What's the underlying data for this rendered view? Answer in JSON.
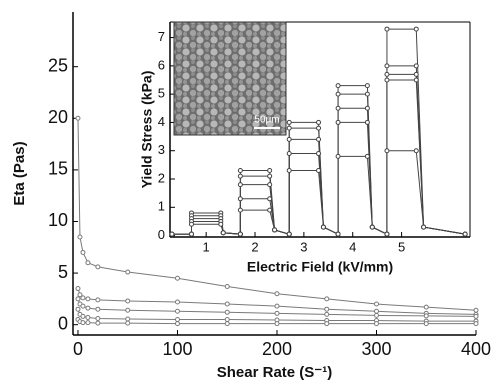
{
  "chart_data": [
    {
      "type": "line",
      "x_label": "Shear Rate (S⁻¹)",
      "y_label": "Eta (Pas)",
      "x": [
        0,
        2,
        5,
        10,
        20,
        50,
        100,
        150,
        200,
        250,
        300,
        350,
        400
      ],
      "series": [
        {
          "color": "#7a7a7a",
          "values": [
            20,
            8.5,
            7,
            6,
            5.6,
            5.1,
            4.5,
            3.7,
            3.0,
            2.5,
            2.0,
            1.7,
            1.4
          ]
        },
        {
          "color": "#7a7a7a",
          "values": [
            3.5,
            2.9,
            2.6,
            2.5,
            2.4,
            2.3,
            2.2,
            2.0,
            1.8,
            1.5,
            1.3,
            1.1,
            1.0
          ]
        },
        {
          "color": "#7a7a7a",
          "values": [
            2.5,
            2.0,
            1.8,
            1.6,
            1.5,
            1.4,
            1.3,
            1.2,
            1.1,
            1.0,
            0.9,
            0.85,
            0.8
          ]
        },
        {
          "color": "#7a7a7a",
          "values": [
            1.5,
            1.0,
            0.8,
            0.7,
            0.6,
            0.55,
            0.5,
            0.5,
            0.45,
            0.4,
            0.4,
            0.35,
            0.35
          ]
        },
        {
          "color": "#7a7a7a",
          "values": [
            0.5,
            0.3,
            0.2,
            0.2,
            0.15,
            0.15,
            0.1,
            0.1,
            0.1,
            0.1,
            0.1,
            0.1,
            0.1
          ]
        }
      ],
      "xlim": [
        -5,
        400
      ],
      "xticks": [
        0,
        100,
        200,
        300,
        400
      ],
      "ylim": [
        -1,
        30.3
      ],
      "yticks": [
        0,
        5,
        10,
        15,
        20,
        25
      ],
      "markers": true
    },
    {
      "type": "line",
      "x_label": "Electric Field (kV/mm)",
      "y_label": "Yield Stress (kPa)",
      "annotations": [
        "50μm"
      ],
      "x": [
        0.3,
        0.7,
        0.7,
        1.3,
        1.35,
        1.7,
        1.7,
        2.3,
        2.4,
        2.7,
        2.7,
        3.3,
        3.4,
        3.7,
        3.7,
        4.3,
        4.4,
        4.7,
        4.7,
        5.3,
        5.45,
        6.3
      ],
      "series": [
        {
          "color": "#444444",
          "values": [
            0.05,
            0.05,
            0.8,
            0.8,
            0.1,
            0.05,
            2.3,
            2.3,
            0.2,
            0.05,
            4.0,
            4.0,
            0.3,
            0.05,
            5.3,
            5.3,
            0.3,
            0.05,
            7.3,
            7.3,
            0.3,
            0.05
          ]
        },
        {
          "color": "#444444",
          "values": [
            0.05,
            0.05,
            0.7,
            0.7,
            0.1,
            0.05,
            2.1,
            2.1,
            0.2,
            0.05,
            3.8,
            3.8,
            0.3,
            0.05,
            5.0,
            5.0,
            0.3,
            0.05,
            6.0,
            6.0,
            0.3,
            0.05
          ]
        },
        {
          "color": "#444444",
          "values": [
            0.05,
            0.05,
            0.6,
            0.6,
            0.1,
            0.05,
            1.8,
            1.8,
            0.2,
            0.05,
            3.4,
            3.4,
            0.3,
            0.05,
            4.5,
            4.5,
            0.3,
            0.05,
            5.7,
            5.7,
            0.3,
            0.05
          ]
        },
        {
          "color": "#444444",
          "values": [
            0.05,
            0.05,
            0.5,
            0.5,
            0.1,
            0.05,
            1.3,
            1.3,
            0.2,
            0.05,
            2.9,
            2.9,
            0.3,
            0.05,
            4.0,
            4.0,
            0.3,
            0.05,
            5.5,
            5.5,
            0.3,
            0.05
          ]
        },
        {
          "color": "#444444",
          "values": [
            0.05,
            0.05,
            0.4,
            0.4,
            0.1,
            0.05,
            0.9,
            0.9,
            0.2,
            0.05,
            2.3,
            2.3,
            0.3,
            0.05,
            2.8,
            2.8,
            0.3,
            0.05,
            3.0,
            3.0,
            0.3,
            0.05
          ]
        }
      ],
      "xlim": [
        0.26,
        6.4
      ],
      "xticks": [
        1,
        2,
        3,
        4,
        5
      ],
      "ylim": [
        -0.05,
        7.55
      ],
      "yticks": [
        0,
        1,
        2,
        3,
        4,
        5,
        6,
        7
      ],
      "markers": true
    }
  ]
}
